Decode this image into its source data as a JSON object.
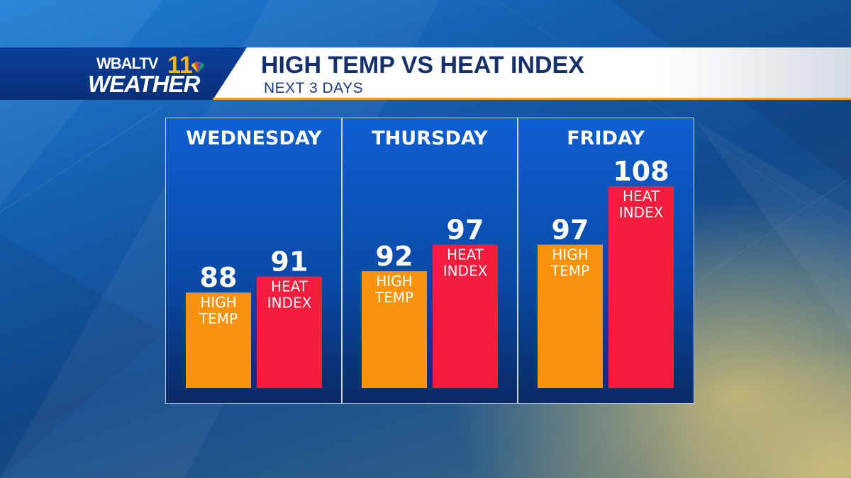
{
  "header": {
    "logo_top": "WBALTV",
    "logo_number": "11",
    "logo_bottom": "WEATHER",
    "title": "HIGH TEMP VS HEAT INDEX",
    "subtitle": "NEXT 3 DAYS"
  },
  "colors": {
    "high_temp": "#f7930c",
    "heat_index": "#f51d3d",
    "panel_top": "#0e5ed0",
    "panel_bottom": "#0a2a66",
    "header_rule": "#e7a21c"
  },
  "chart_data": {
    "type": "bar",
    "categories": [
      "WEDNESDAY",
      "THURSDAY",
      "FRIDAY"
    ],
    "series": [
      {
        "name": "HIGH TEMP",
        "values": [
          88,
          92,
          97
        ]
      },
      {
        "name": "HEAT INDEX",
        "values": [
          91,
          97,
          108
        ]
      }
    ],
    "title": "HIGH TEMP VS HEAT INDEX",
    "subtitle": "NEXT 3 DAYS",
    "grid": false,
    "legend": "none"
  }
}
